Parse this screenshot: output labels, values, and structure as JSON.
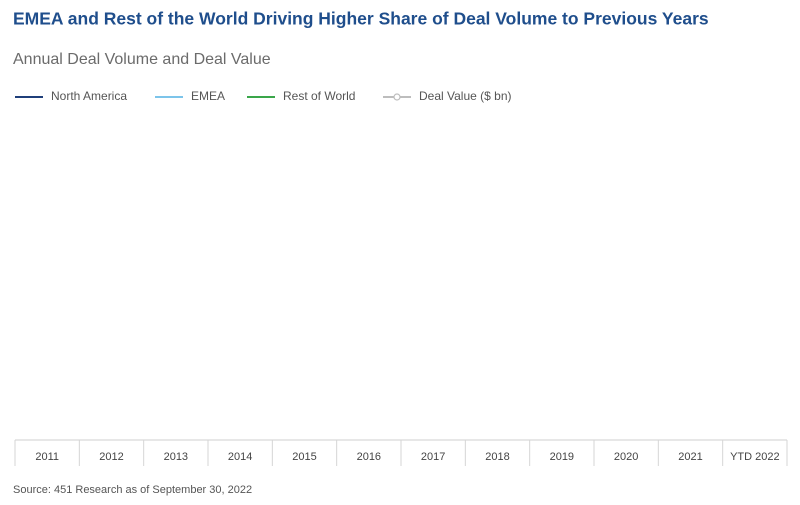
{
  "chart_data": {
    "type": "line",
    "title": "EMEA and Rest of the World Driving Higher Share of Deal Volume to Previous Years",
    "subtitle": "Annual Deal Volume and Deal Value",
    "categories": [
      "2011",
      "2012",
      "2013",
      "2014",
      "2015",
      "2016",
      "2017",
      "2018",
      "2019",
      "2020",
      "2021",
      "YTD 2022"
    ],
    "series": [
      {
        "name": "North America",
        "color": "#1f3f7a"
      },
      {
        "name": "EMEA",
        "color": "#7cc4ea"
      },
      {
        "name": "Rest of World",
        "color": "#3aa64a"
      },
      {
        "name": "Deal Value ($ bn)",
        "color": "#bdbdbd",
        "marker": true
      }
    ],
    "source": "Source: 451 Research as of September 30, 2022"
  }
}
